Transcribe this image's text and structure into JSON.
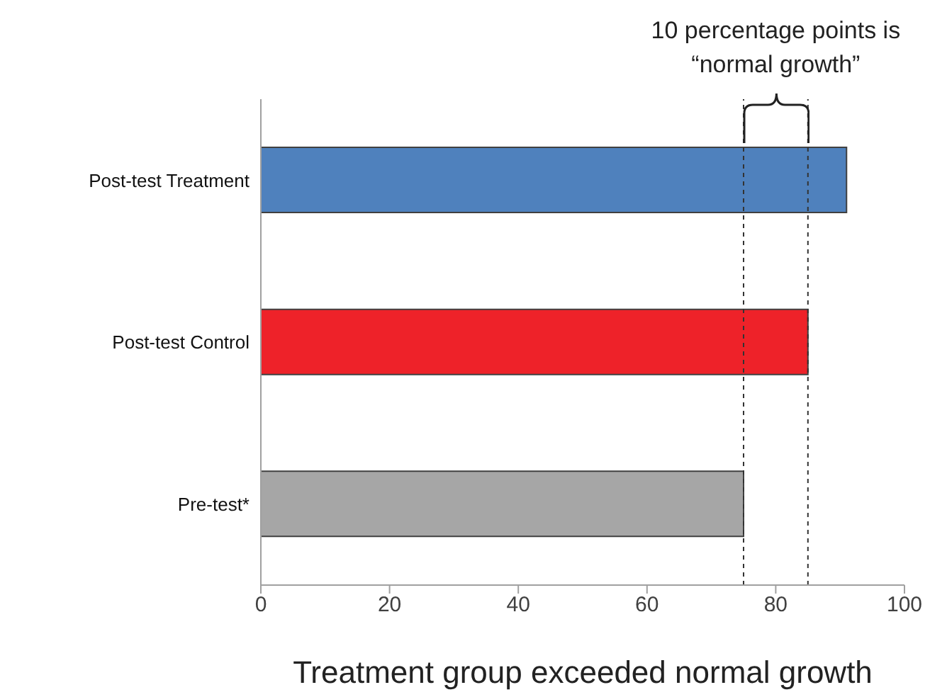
{
  "chart_data": {
    "type": "bar",
    "orientation": "horizontal",
    "xlabel": "Treatment group exceeded normal growth",
    "categories": [
      "Post-test Treatment",
      "Post-test Control",
      "Pre-test*"
    ],
    "values": [
      91,
      85,
      75
    ],
    "colors": [
      "#4f81bd",
      "#ee2229",
      "#a6a6a6"
    ],
    "xlim": [
      0,
      100
    ],
    "xticks": [
      0,
      20,
      40,
      60,
      80,
      100
    ],
    "ref_lines": [
      {
        "axis": "x",
        "value": 75,
        "line_style": "dashed",
        "color": "#333333"
      },
      {
        "axis": "x",
        "value": 85,
        "line_style": "dashed",
        "color": "#333333"
      }
    ],
    "annotations": [
      "10 percentage points is\n“normal growth”"
    ]
  }
}
